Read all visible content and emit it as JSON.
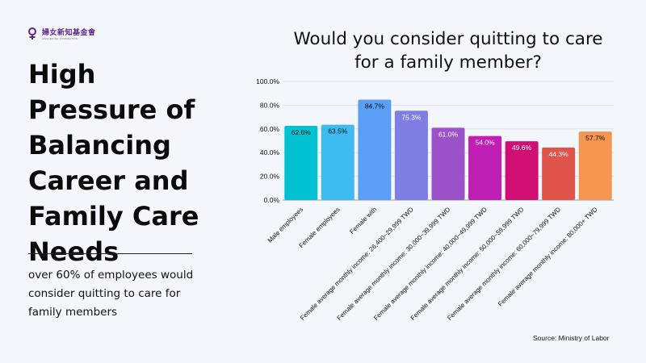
{
  "logo": {
    "name": "婦女新知基金會",
    "sub": "AWAKENING FOUNDATION"
  },
  "headline": "High Pressure of Balancing Career and Family Care Needs",
  "subtext": "over 60% of employees would consider quitting to care for family members",
  "source": "Source: Ministry of Labor",
  "chart_data": {
    "type": "bar",
    "title": "Would you consider quitting to care for a family member?",
    "categories": [
      "Male employees",
      "Female employees",
      "Female with",
      "Female average monthly income: 26,400~29,999 TWD",
      "Female average monthly income: 30,000~39,999 TWD",
      "Female average monthly income: 40,000~49,999 TWD",
      "Female average monthly income: 50,000~59,999 TWD",
      "Female average monthly income: 60,000~79,999 TWD",
      "Female average monthly income: 80,000+ TWD"
    ],
    "values": [
      62.6,
      63.5,
      84.7,
      75.3,
      61.0,
      54.0,
      49.6,
      44.3,
      57.7
    ],
    "value_labels": [
      "62.6%",
      "63.5%",
      "84.7%",
      "75.3%",
      "61.0%",
      "54.0%",
      "49.6%",
      "44.3%",
      "57.7%"
    ],
    "colors": [
      "#00c2d1",
      "#3ebcf2",
      "#5b9ef5",
      "#7f7fe3",
      "#9b52c9",
      "#bf1fb2",
      "#cf0f74",
      "#e0544b",
      "#f59550"
    ],
    "label_colors": [
      "#0b0b0b",
      "#0b0b0b",
      "#0b0b0b",
      "#ffffff",
      "#ffffff",
      "#ffffff",
      "#ffffff",
      "#ffffff",
      "#0b0b0b"
    ],
    "ylim": [
      0,
      100
    ],
    "yticks": [
      "0.0%",
      "20.0%",
      "40.0%",
      "60.0%",
      "80.0%",
      "100.0%"
    ],
    "xlabel": "",
    "ylabel": "",
    "grid": true,
    "legend": "none"
  }
}
